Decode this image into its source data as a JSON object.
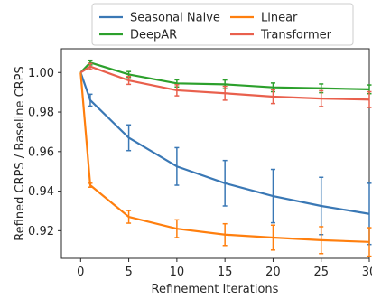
{
  "chart_data": {
    "type": "line",
    "xlabel": "Refinement Iterations",
    "ylabel": "Refined CRPS / Baseline CRPS",
    "xlim": [
      -2,
      30
    ],
    "ylim": [
      0.906,
      1.012
    ],
    "xticks": [
      0,
      5,
      10,
      15,
      20,
      25,
      30
    ],
    "yticks": [
      0.92,
      0.94,
      0.96,
      0.98,
      1.0
    ],
    "xtick_labels": [
      "0",
      "5",
      "10",
      "15",
      "20",
      "25",
      "30"
    ],
    "ytick_labels": [
      "0.92",
      "0.94",
      "0.96",
      "0.98",
      "1.00"
    ],
    "grid": false,
    "legend_placement": "top-center (outside)",
    "series": [
      {
        "name": "Seasonal Naive",
        "color": "#3a78b5",
        "x": [
          0,
          1,
          5,
          10,
          15,
          20,
          25,
          30
        ],
        "y": [
          1.0,
          0.986,
          0.967,
          0.9525,
          0.944,
          0.9375,
          0.9325,
          0.9285
        ],
        "err": [
          0,
          0.003,
          0.0065,
          0.0095,
          0.0115,
          0.0135,
          0.0145,
          0.0155
        ]
      },
      {
        "name": "DeepAR",
        "color": "#2ca02c",
        "x": [
          0,
          1,
          5,
          10,
          15,
          20,
          25,
          30
        ],
        "y": [
          1.0,
          1.005,
          0.999,
          0.9945,
          0.994,
          0.9925,
          0.992,
          0.9915
        ],
        "err": [
          0,
          0.0012,
          0.0015,
          0.0018,
          0.0022,
          0.0022,
          0.0022,
          0.0022
        ]
      },
      {
        "name": "Linear",
        "color": "#ff7f0e",
        "x": [
          0,
          1,
          5,
          10,
          15,
          20,
          25,
          30
        ],
        "y": [
          1.0,
          0.943,
          0.927,
          0.921,
          0.918,
          0.9165,
          0.9152,
          0.9143
        ],
        "err": [
          0,
          0.001,
          0.0032,
          0.0045,
          0.0055,
          0.0063,
          0.0068,
          0.0072
        ]
      },
      {
        "name": "Transformer",
        "color": "#e9604d",
        "x": [
          0,
          1,
          5,
          10,
          15,
          20,
          25,
          30
        ],
        "y": [
          1.0,
          1.003,
          0.996,
          0.991,
          0.9895,
          0.9878,
          0.9868,
          0.9863
        ],
        "err": [
          0,
          0.0015,
          0.002,
          0.0028,
          0.0035,
          0.0035,
          0.004,
          0.004
        ]
      }
    ]
  }
}
